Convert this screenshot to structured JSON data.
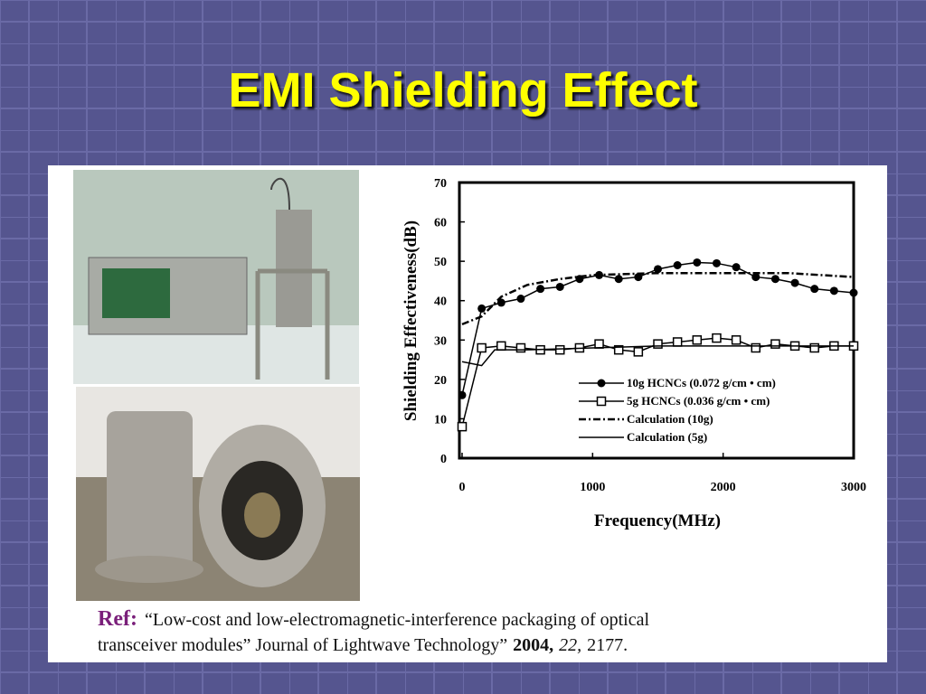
{
  "title": "EMI Shielding Effect",
  "chart_data": {
    "type": "line",
    "xlabel": "Frequency(MHz)",
    "ylabel": "Shielding Effectiveness(dB)",
    "xlim": [
      0,
      3000
    ],
    "ylim": [
      0,
      70
    ],
    "xticks": [
      0,
      1000,
      2000,
      3000
    ],
    "yticks": [
      0,
      10,
      20,
      30,
      40,
      50,
      60,
      70
    ],
    "series": [
      {
        "name": "10g HCNCs  (0.072 g/cm • cm)",
        "color": "#000000",
        "x": [
          0,
          150,
          300,
          450,
          600,
          750,
          900,
          1050,
          1200,
          1350,
          1500,
          1650,
          1800,
          1950,
          2100,
          2250,
          2400,
          2550,
          2700,
          2850,
          3000
        ],
        "values": [
          16,
          38,
          39.5,
          40.5,
          43,
          43.5,
          45.5,
          46.5,
          45.5,
          46,
          48,
          49,
          49.7,
          49.5,
          48.5,
          46,
          45.5,
          44.5,
          43,
          42.5,
          42
        ]
      },
      {
        "name": "5g HCNCs (0.036 g/cm • cm)",
        "color": "#000000",
        "x": [
          0,
          150,
          300,
          450,
          600,
          750,
          900,
          1050,
          1200,
          1350,
          1500,
          1650,
          1800,
          1950,
          2100,
          2250,
          2400,
          2550,
          2700,
          2850,
          3000
        ],
        "values": [
          8,
          28,
          28.5,
          28,
          27.5,
          27.5,
          28,
          29,
          27.5,
          27,
          29,
          29.5,
          30,
          30.5,
          30,
          28,
          29,
          28.5,
          28,
          28.5,
          28.5
        ]
      },
      {
        "name": "Calculation (10g)",
        "color": "#000000",
        "x": [
          0,
          150,
          300,
          500,
          750,
          1000,
          1500,
          2000,
          2500,
          3000
        ],
        "values": [
          34,
          36,
          41,
          44,
          45.5,
          46.5,
          47,
          47,
          47,
          46
        ]
      },
      {
        "name": "Calculation (5g)",
        "color": "#000000",
        "x": [
          0,
          150,
          250,
          500,
          1000,
          1500,
          2000,
          2500,
          3000
        ],
        "values": [
          24.5,
          23.5,
          27.5,
          27.5,
          28,
          28.5,
          28.5,
          28.5,
          28.5
        ]
      }
    ]
  },
  "ref": {
    "label": "Ref:",
    "line1": "“Low-cost and low-electromagnetic-interference packaging of optical",
    "line2": "transceiver modules” Journal of Lightwave Technology”",
    "year": "2004,",
    "volume": "22,",
    "pages": "2177."
  }
}
